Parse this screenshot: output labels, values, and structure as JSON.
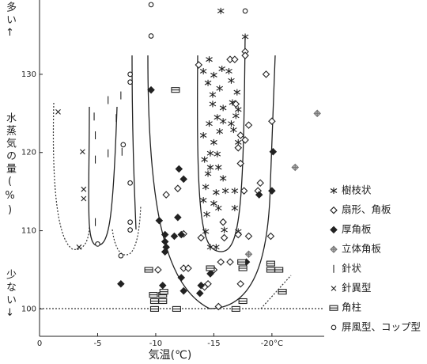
{
  "chart_data": {
    "type": "scatter",
    "y_label_top": "多い↑",
    "y_label": "水蒸気の量(%)",
    "y_label_bottom": "少ない↓",
    "x_label": "気温(℃)",
    "xlim": [
      0,
      -24.5
    ],
    "ylim": [
      96.5,
      139.5
    ],
    "xticks": [
      0,
      -5,
      -10,
      -15,
      {
        "value": -20,
        "label": "-20°C"
      }
    ],
    "yticks": [
      100,
      110,
      120,
      130
    ],
    "series": [
      {
        "name": "樹枝状",
        "marker": "asterisk",
        "color": "#222",
        "x": [
          -15.6,
          -17.7,
          -14.6,
          -15.7,
          -14.1,
          -16.3,
          -15.0,
          -14.5,
          -16.5,
          -15.5,
          -17.0,
          -14.9,
          -16.6,
          -14.9,
          -15.8,
          -17.1,
          -16.9,
          -15.3,
          -15.8,
          -16.5,
          -16.7,
          -14.6,
          -15.5,
          -14.1,
          -15.0,
          -17.1,
          -14.7,
          -15.3,
          -14.2,
          -14.7,
          -15.4,
          -14.5,
          -15.8,
          -16.8,
          -16.0,
          -15.2,
          -14.3,
          -15.0,
          -14.4,
          -15.4,
          -14.1,
          -14.3,
          -15.9,
          -17.1,
          -14.7,
          -15.2,
          -16.8
        ],
        "values": [
          138.1,
          134.8,
          131.9,
          130.7,
          130.4,
          130.4,
          129.9,
          128.9,
          129.2,
          128.2,
          127.7,
          127.4,
          126.4,
          126.2,
          125.7,
          125.5,
          124.7,
          124.5,
          124.0,
          123.7,
          122.9,
          123.7,
          122.7,
          122.2,
          121.3,
          121.3,
          119.9,
          119.8,
          119.1,
          118.1,
          118.1,
          117.3,
          116.7,
          115.1,
          115.1,
          114.9,
          115.6,
          113.5,
          112.1,
          112.9,
          113.9,
          109.9,
          110.1,
          109.9,
          107.9,
          107.9,
          112.9
        ]
      },
      {
        "name": "扇形、角板",
        "marker": "diamond",
        "color": "#222",
        "x": [
          -13.7,
          -16.4,
          -16.8,
          -17.7,
          -17.7,
          -19.5,
          -20.0,
          -16.9,
          -18.0,
          -17.3,
          -17.1,
          -17.7,
          -17.3,
          -19.0,
          -18.8,
          -17.6,
          -15.8,
          -17.1,
          -15.9,
          -18.0,
          -10.9,
          -11.9,
          -12.4,
          -13.9,
          -12.4,
          -10.2,
          -16.4,
          -15.6,
          -15.0,
          -14.5,
          -14.2,
          -17.3,
          -19.9,
          -15.4,
          -12.8
        ],
        "values": [
          131.2,
          131.9,
          131.9,
          132.9,
          132.4,
          130.0,
          124.0,
          126.2,
          123.5,
          122.2,
          120.6,
          121.6,
          118.6,
          116.1,
          115.1,
          115.1,
          111.1,
          109.5,
          109.1,
          109.3,
          114.6,
          115.4,
          109.6,
          109.1,
          105.2,
          105.0,
          106.0,
          106.0,
          105.0,
          103.2,
          102.8,
          103.2,
          109.3,
          100.3,
          105.2
        ]
      },
      {
        "name": "厚角板",
        "marker": "diamond-filled",
        "color": "#222",
        "x": [
          -9.6,
          -12.0,
          -12.4,
          -10.3,
          -10.8,
          -10.8,
          -10.8,
          -10.9,
          -11.9,
          -12.2,
          -11.6,
          -12.2,
          -12.4,
          -10.6,
          -13.9,
          -13.8,
          -17.8,
          -18.9,
          -20.1,
          -20.0,
          -7.0,
          -14.7
        ],
        "values": [
          128.0,
          117.9,
          116.6,
          111.3,
          109.5,
          108.6,
          107.3,
          107.9,
          111.7,
          109.5,
          109.3,
          104.0,
          102.3,
          103.0,
          103.0,
          102.0,
          106.0,
          114.6,
          120.1,
          115.1,
          103.2,
          104.5
        ]
      },
      {
        "name": "立体角板",
        "marker": "diamond-cross",
        "color": "#777",
        "x": [
          -23.9,
          -22.0,
          -18.0
        ],
        "values": [
          125.0,
          118.1,
          107.0
        ]
      },
      {
        "name": "針状",
        "marker": "vline",
        "color": "#222",
        "x": [
          -4.7,
          -4.8,
          -4.8,
          -4.8,
          -5.9,
          -5.9,
          -6.6,
          -7.0,
          -7.1
        ],
        "values": [
          124.6,
          122.2,
          119.1,
          111.1,
          126.7,
          119.9,
          124.4,
          127.3,
          120.1
        ]
      },
      {
        "name": "針異型",
        "marker": "x",
        "color": "#222",
        "x": [
          -1.6,
          -3.7,
          -3.8,
          -3.8,
          -3.4
        ],
        "values": [
          125.2,
          120.1,
          115.3,
          114.1,
          107.9
        ]
      },
      {
        "name": "角柱",
        "marker": "prism",
        "color": "#222",
        "x": [
          -11.7,
          -9.4,
          -9.8,
          -9.9,
          -9.9,
          -10.6,
          -10.6,
          -10.7,
          -11.8,
          -14.7,
          -17.4,
          -17.5,
          -17.5,
          -16.9,
          -20.9,
          -19.9,
          -19.9,
          -20.6
        ],
        "values": [
          128.0,
          105.0,
          101.8,
          101.0,
          100.0,
          101.8,
          101.0,
          102.2,
          100.0,
          105.2,
          106.0,
          105.2,
          101.0,
          100.0,
          102.2,
          105.8,
          105.0,
          105.0
        ]
      },
      {
        "name": "屏風型、コップ型",
        "marker": "circle",
        "color": "#222",
        "x": [
          -9.6,
          -9.6,
          -17.7,
          -7.8,
          -7.8,
          -7.2,
          -7.8,
          -7.8,
          -7.8,
          -5.0,
          -7.0
        ],
        "values": [
          138.9,
          134.9,
          138.1,
          130.0,
          129.0,
          121.0,
          116.1,
          111.1,
          110.1,
          108.3,
          106.8
        ]
      }
    ]
  }
}
